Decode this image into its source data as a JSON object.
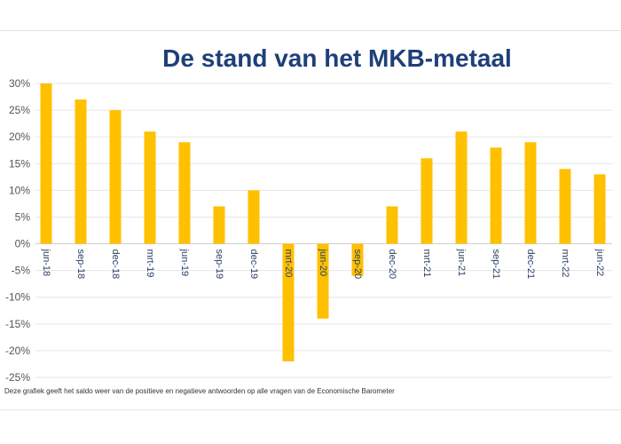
{
  "chart_data": {
    "type": "bar",
    "title": "De stand van het MKB-metaal",
    "footnote": "Deze grafiek geeft het saldo weer van de positieve en negatieve  antwoorden op alle vragen van de Economische Barometer",
    "categories": [
      "jun-18",
      "sep-18",
      "dec-18",
      "mrt-19",
      "jun-19",
      "sep-19",
      "dec-19",
      "mrt-20",
      "jun-20",
      "sep-20",
      "dec-20",
      "mrt-21",
      "jun-21",
      "sep-21",
      "dec-21",
      "mrt-22",
      "jun-22"
    ],
    "values": [
      30,
      27,
      25,
      21,
      19,
      7,
      10,
      -22,
      -14,
      -6,
      7,
      16,
      21,
      18,
      19,
      14,
      13
    ],
    "y_ticks": [
      "30%",
      "25%",
      "20%",
      "15%",
      "10%",
      "5%",
      "0%",
      "-5%",
      "-10%",
      "-15%",
      "-20%",
      "-25%"
    ],
    "ylim": [
      -25,
      30
    ],
    "bar_color": "#FFC000",
    "grid": true,
    "legend": "none"
  }
}
